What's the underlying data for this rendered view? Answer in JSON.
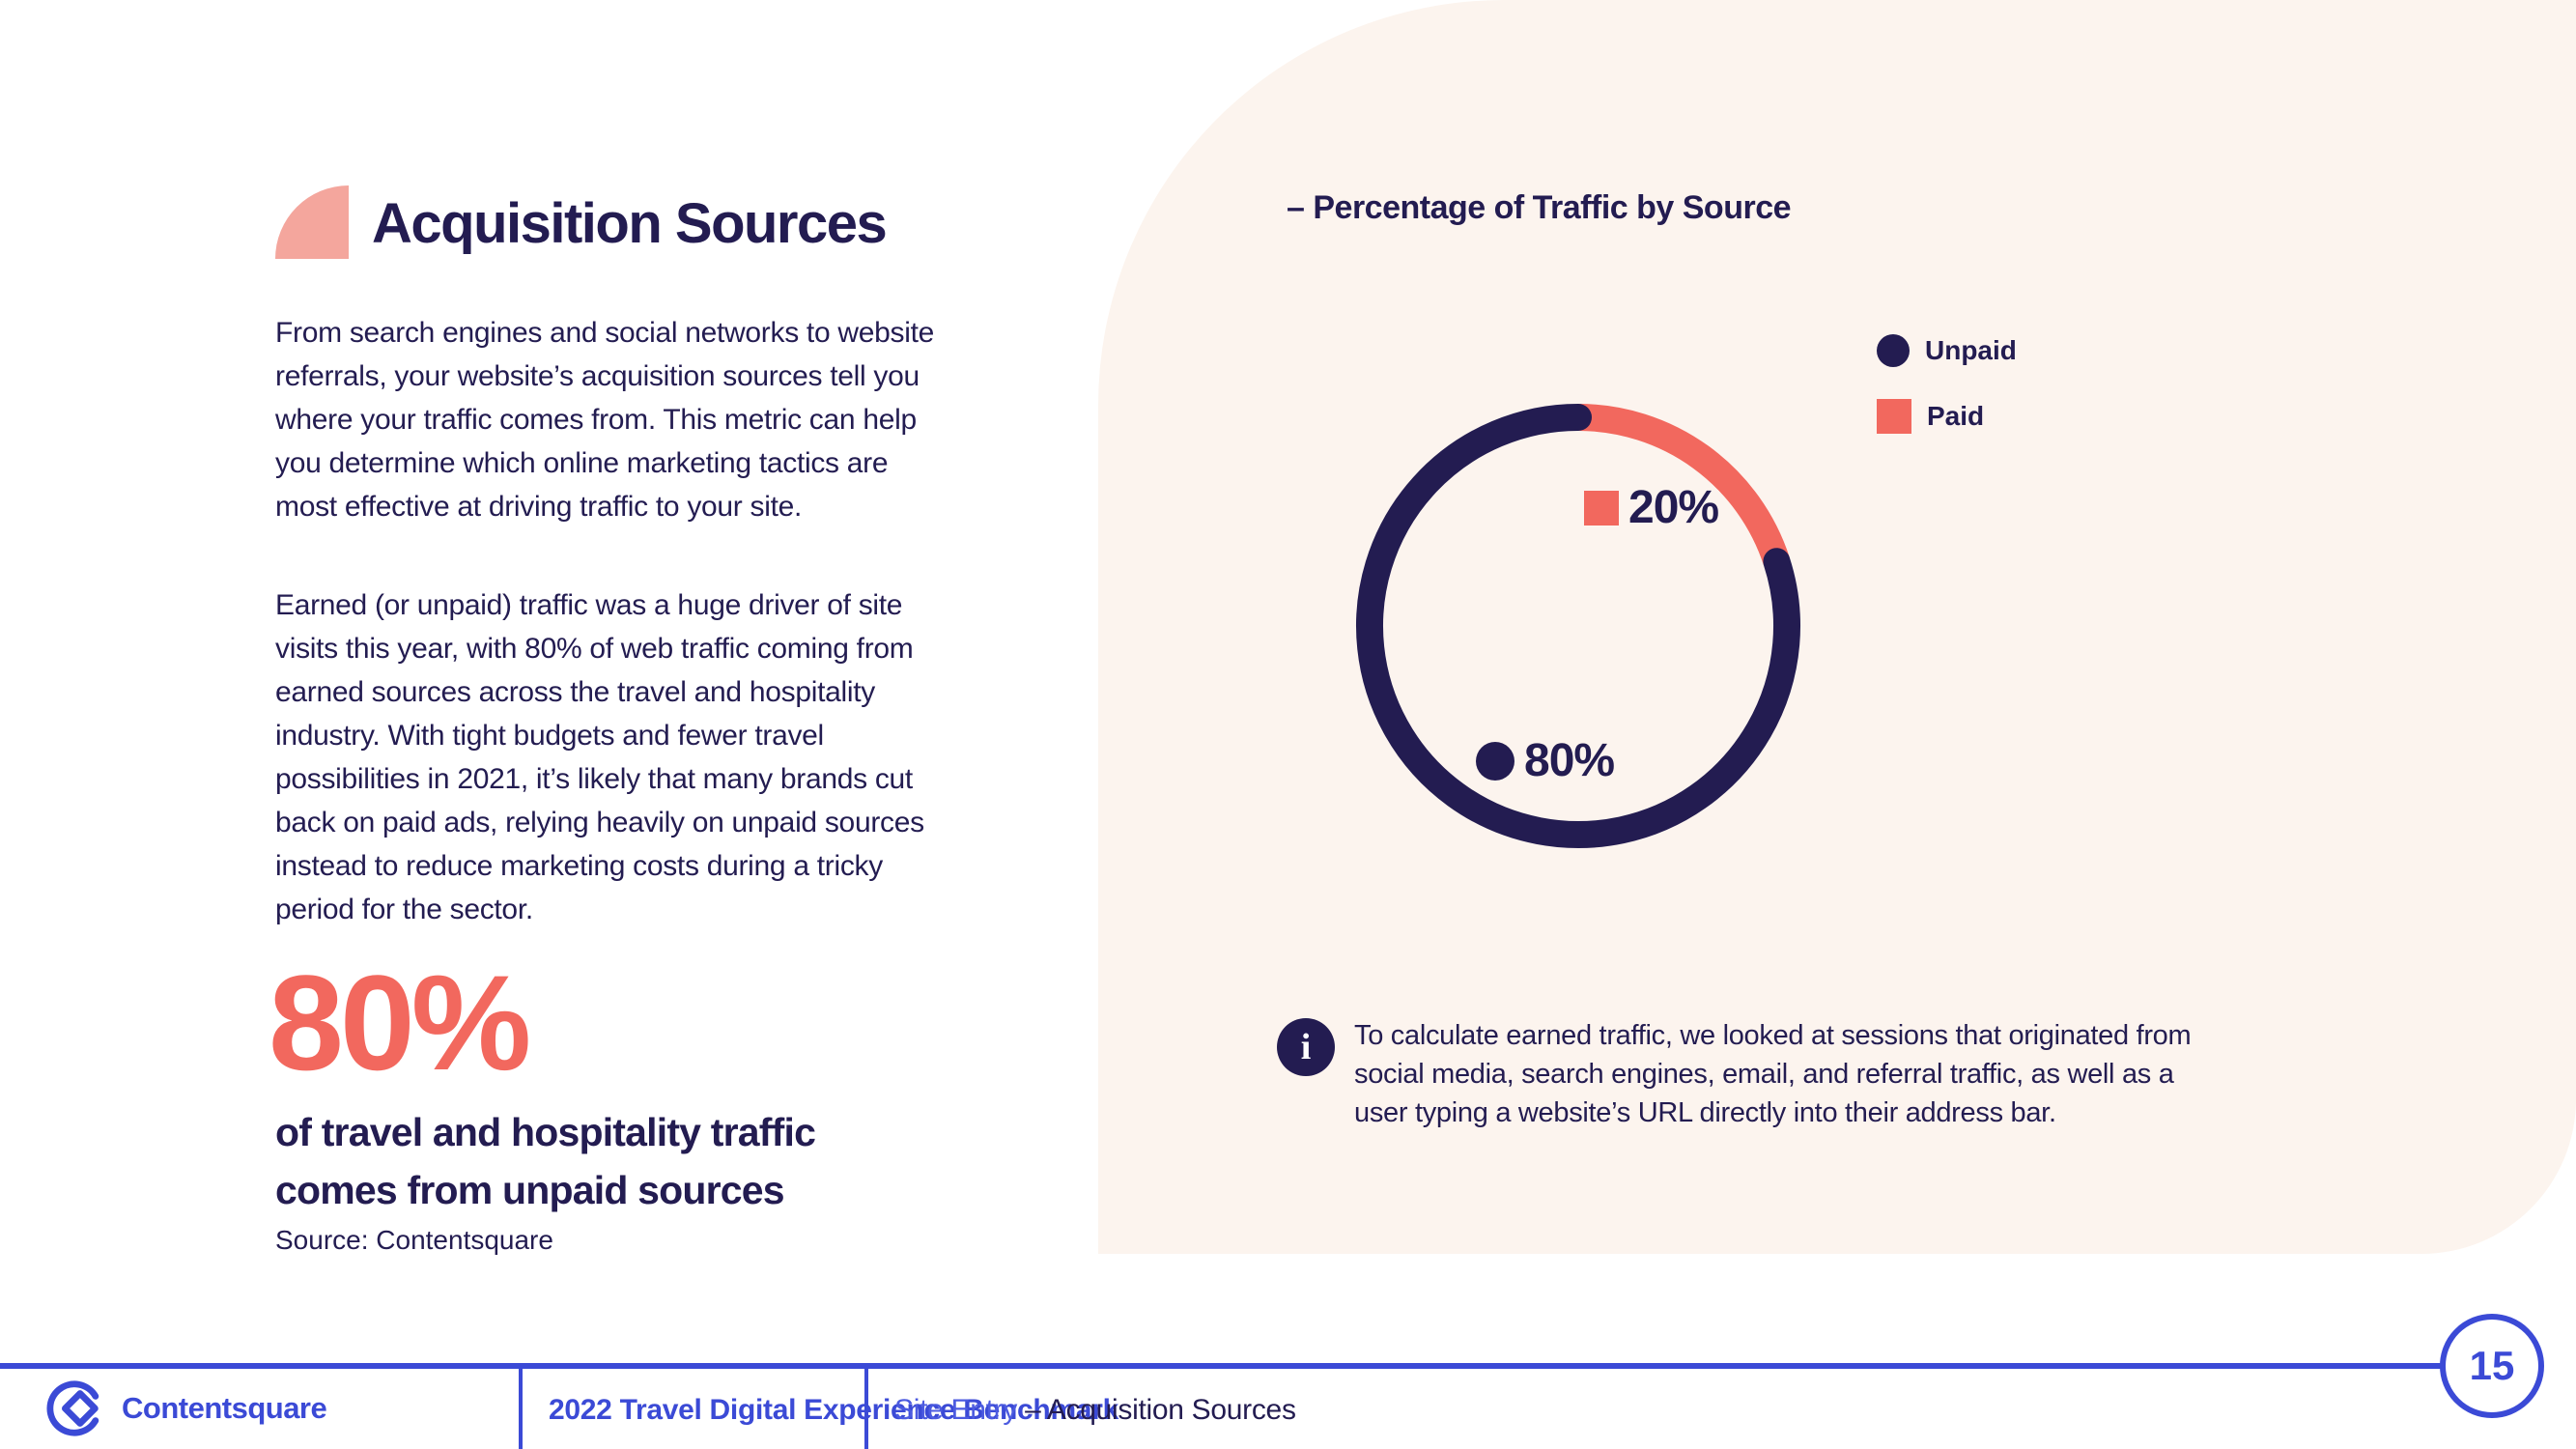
{
  "left": {
    "title": "Acquisition Sources",
    "paragraphs": [
      "From search engines and social networks to website referrals, your website’s acquisition sources tell you where your traffic comes from. This metric can help you determine which online marketing tactics are most effective at driving traffic to your site.",
      "Earned (or unpaid) traffic was a huge driver of site visits this year, with 80% of web traffic coming from earned sources across the travel and hospitality industry. With tight budgets and fewer travel possibilities in 2021, it’s likely that many brands cut back on paid ads, relying heavily on unpaid sources instead to reduce marketing costs during a tricky period for the sector."
    ],
    "stat": {
      "value": "80%",
      "caption_lines": [
        "of travel and hospitality traffic",
        "comes from unpaid sources"
      ],
      "source": "Source: Contentsquare"
    }
  },
  "panel": {
    "heading": "– Percentage of Traffic by Source",
    "legend": [
      {
        "label": "Unpaid",
        "marker": "circle",
        "color": "#231c51"
      },
      {
        "label": "Paid",
        "marker": "square",
        "color": "#f2685e"
      }
    ],
    "note_icon_glyph": "i",
    "note": "To calculate earned traffic, we looked at sessions that originated from social media, search engines, email, and referral traffic, as well as a user typing a website’s URL directly into their address bar."
  },
  "chart_data": {
    "type": "pie",
    "variant": "donut",
    "title": "Percentage of Traffic by Source",
    "legend_position": "top-right",
    "start_angle_deg": 0,
    "direction": "clockwise",
    "segments": [
      {
        "label": "Paid",
        "value": 20,
        "display": "20%",
        "color": "#f2685e",
        "marker": "square",
        "cap": "butt"
      },
      {
        "label": "Unpaid",
        "value": 80,
        "display": "80%",
        "color": "#231c51",
        "marker": "circle",
        "cap": "round"
      }
    ]
  },
  "footer": {
    "brand": "Contentsquare",
    "report": "2022 Travel Digital Experience Benchmark",
    "section": "Site Entry",
    "section_rest": "– Acquisition Sources",
    "page_number": "15"
  },
  "colors": {
    "navy": "#231c51",
    "coral": "#f2685e",
    "salmon": "#f4a69d",
    "royal_blue": "#3b4ad6",
    "cream": "#fcf4ee"
  }
}
